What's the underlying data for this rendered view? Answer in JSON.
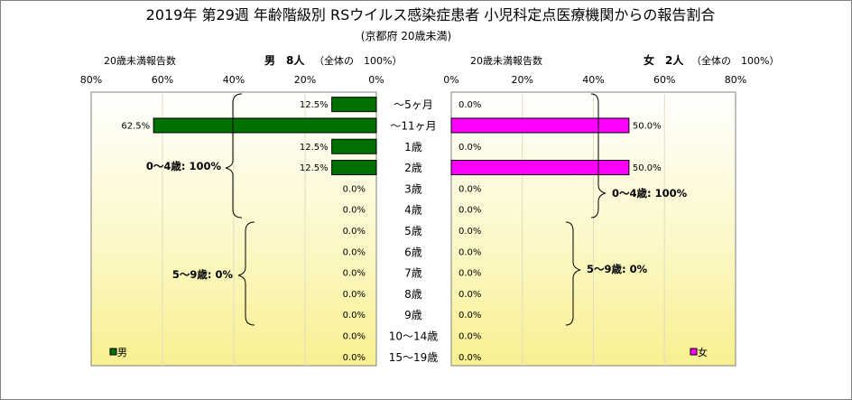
{
  "title": "2019年 第29週 年齢階級別 RSウイルス感染症患者 小児科定点医療機関からの報告割合",
  "subtitle": "(京都府 20歳未満)",
  "chart_data": {
    "type": "bar",
    "orientation": "horizontal-pyramid",
    "categories": [
      "～5ヶ月",
      "～11ヶ月",
      "1歳",
      "2歳",
      "3歳",
      "4歳",
      "5歳",
      "6歳",
      "7歳",
      "8歳",
      "9歳",
      "10～14歳",
      "15～19歳"
    ],
    "series": [
      {
        "name": "男",
        "side": "left",
        "color": "#007000",
        "values": [
          12.5,
          62.5,
          12.5,
          12.5,
          0.0,
          0.0,
          0.0,
          0.0,
          0.0,
          0.0,
          0.0,
          0.0,
          0.0
        ],
        "value_labels": [
          "12.5%",
          "62.5%",
          "12.5%",
          "12.5%",
          "0.0%",
          "0.0%",
          "0.0%",
          "0.0%",
          "0.0%",
          "0.0%",
          "0.0%",
          "0.0%",
          "0.0%"
        ],
        "header_left": "20歳未満報告数",
        "header_mid": "男　8人",
        "header_right": "（全体の　100%）",
        "groups": [
          {
            "label": "0～4歳: 100%",
            "from": 0,
            "to": 5
          },
          {
            "label": "5～9歳: 0%",
            "from": 6,
            "to": 10
          }
        ]
      },
      {
        "name": "女",
        "side": "right",
        "color": "#ff00ff",
        "values": [
          0.0,
          50.0,
          0.0,
          50.0,
          0.0,
          0.0,
          0.0,
          0.0,
          0.0,
          0.0,
          0.0,
          0.0,
          0.0
        ],
        "value_labels": [
          "0.0%",
          "50.0%",
          "0.0%",
          "50.0%",
          "0.0%",
          "0.0%",
          "0.0%",
          "0.0%",
          "0.0%",
          "0.0%",
          "0.0%",
          "0.0%",
          "0.0%"
        ],
        "header_left": "20歳未満報告数",
        "header_mid": "女　2人",
        "header_right": "（全体の　100%）",
        "groups": [
          {
            "label": "0～4歳: 100%",
            "from": 0,
            "to": 5
          },
          {
            "label": "5～9歳: 0%",
            "from": 6,
            "to": 10
          }
        ]
      }
    ],
    "xlim": [
      0,
      80
    ],
    "x_ticks": [
      "80%",
      "60%",
      "40%",
      "20%",
      "0%"
    ],
    "x_ticks_right": [
      "0%",
      "20%",
      "40%",
      "60%",
      "80%"
    ],
    "grid": true,
    "gridline_values": [
      20,
      40,
      60
    ],
    "legend": [
      "男",
      "女"
    ],
    "legend_placement": "bottom-left / bottom-right",
    "plot_background": "light-yellow gradient"
  }
}
